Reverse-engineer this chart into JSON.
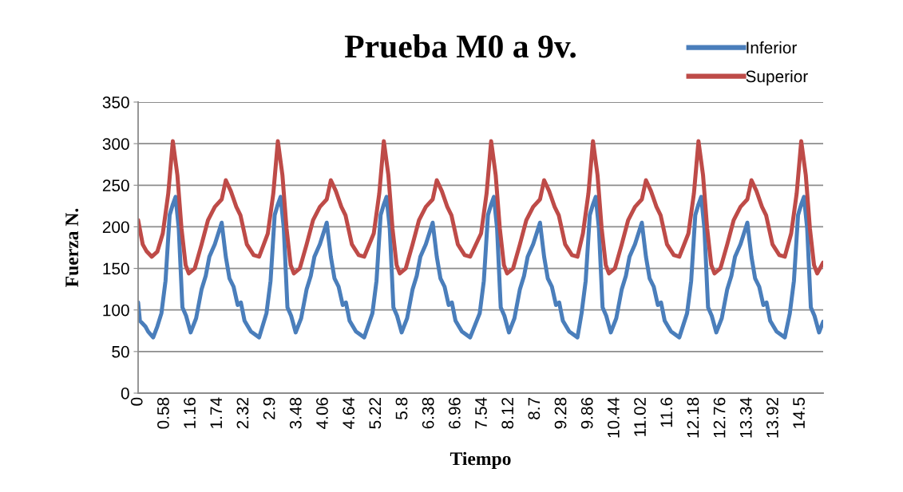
{
  "chart_data": {
    "type": "line",
    "title": "Prueba M0 a 9v.",
    "xlabel": "Tiempo",
    "ylabel": "Fuerza N.",
    "ylim": [
      0,
      350
    ],
    "yticks": [
      0,
      50,
      100,
      150,
      200,
      250,
      300,
      350
    ],
    "xlim": [
      0,
      15.0
    ],
    "xticks": [
      0,
      0.58,
      1.16,
      1.74,
      2.32,
      2.9,
      3.48,
      4.06,
      4.64,
      5.22,
      5.8,
      6.38,
      6.96,
      7.54,
      8.12,
      8.7,
      9.28,
      9.86,
      10.44,
      11.02,
      11.6,
      12.18,
      12.76,
      13.34,
      13.92,
      14.5
    ],
    "grid": "y",
    "legend": "top right",
    "marker": "none",
    "line_style": "solid",
    "series": [
      {
        "name": "Inferior",
        "color": "#4a7ebb",
        "x": [
          0,
          0.04,
          0.16,
          0.22,
          0.33,
          0.42,
          0.51,
          0.6,
          0.69,
          0.76,
          0.82,
          0.89,
          0.97,
          1.05,
          1.15,
          1.27,
          1.39,
          1.48,
          1.56,
          1.68,
          1.83,
          1.92,
          2.0,
          2.09,
          2.18,
          2.25,
          2.33,
          2.47,
          2.65,
          2.81,
          2.9,
          2.99,
          3.06,
          3.12,
          3.19,
          3.27,
          3.35,
          3.45,
          3.57,
          3.69,
          3.78,
          3.86,
          3.98,
          4.13,
          4.22,
          4.3,
          4.39,
          4.48,
          4.55,
          4.63,
          4.77,
          4.95,
          5.13,
          5.22,
          5.31,
          5.38,
          5.44,
          5.51,
          5.59,
          5.67,
          5.77,
          5.89,
          6.01,
          6.1,
          6.18,
          6.3,
          6.45,
          6.54,
          6.62,
          6.71,
          6.8,
          6.87,
          6.95,
          7.09,
          7.27,
          7.48,
          7.57,
          7.66,
          7.73,
          7.79,
          7.86,
          7.94,
          8.02,
          8.12,
          8.24,
          8.36,
          8.45,
          8.53,
          8.65,
          8.8,
          8.89,
          8.97,
          9.06,
          9.15,
          9.22,
          9.3,
          9.44,
          9.62,
          9.71,
          9.8,
          9.89,
          9.96,
          10.02,
          10.09,
          10.17,
          10.25,
          10.35,
          10.47,
          10.59,
          10.68,
          10.76,
          10.88,
          11.03,
          11.12,
          11.2,
          11.29,
          11.38,
          11.45,
          11.53,
          11.67,
          11.85,
          12.02,
          12.11,
          12.2,
          12.27,
          12.33,
          12.4,
          12.48,
          12.56,
          12.66,
          12.78,
          12.9,
          12.99,
          13.07,
          13.19,
          13.34,
          13.43,
          13.51,
          13.6,
          13.69,
          13.76,
          13.84,
          13.98,
          14.16,
          14.27,
          14.36,
          14.45,
          14.52,
          14.58,
          14.65,
          14.73,
          14.81,
          14.91,
          15.0
        ],
        "values": [
          109,
          87,
          80,
          74,
          67,
          80,
          96,
          135,
          214,
          227,
          236,
          198,
          103,
          93,
          73,
          90,
          125,
          141,
          164,
          179,
          205,
          164,
          138,
          128,
          106,
          109,
          87,
          74,
          67,
          96,
          135,
          214,
          227,
          236,
          198,
          103,
          93,
          73,
          90,
          125,
          141,
          164,
          179,
          205,
          164,
          138,
          128,
          106,
          109,
          87,
          74,
          67,
          96,
          135,
          214,
          227,
          236,
          198,
          103,
          93,
          73,
          90,
          125,
          141,
          164,
          179,
          205,
          164,
          138,
          128,
          106,
          109,
          87,
          74,
          67,
          96,
          135,
          214,
          227,
          236,
          198,
          103,
          93,
          73,
          90,
          125,
          141,
          164,
          179,
          205,
          164,
          138,
          128,
          106,
          109,
          87,
          74,
          67,
          96,
          135,
          214,
          227,
          236,
          198,
          103,
          93,
          73,
          90,
          125,
          141,
          164,
          179,
          205,
          164,
          138,
          128,
          106,
          109,
          87,
          74,
          67,
          96,
          135,
          214,
          227,
          236,
          198,
          103,
          93,
          73,
          90,
          125,
          141,
          164,
          179,
          205,
          164,
          138,
          128,
          106,
          109,
          87,
          74,
          67,
          96,
          135,
          214,
          227,
          236,
          198,
          103,
          93,
          73,
          86
        ]
      },
      {
        "name": "Superior",
        "color": "#be4b48",
        "x": [
          0,
          0.1,
          0.18,
          0.3,
          0.42,
          0.54,
          0.66,
          0.76,
          0.86,
          0.95,
          1.04,
          1.11,
          1.24,
          1.39,
          1.53,
          1.68,
          1.83,
          1.92,
          2.03,
          2.15,
          2.24,
          2.38,
          2.53,
          2.65,
          2.84,
          2.96,
          3.06,
          3.16,
          3.25,
          3.34,
          3.41,
          3.54,
          3.69,
          3.83,
          3.98,
          4.13,
          4.22,
          4.33,
          4.45,
          4.54,
          4.68,
          4.83,
          4.95,
          5.16,
          5.28,
          5.38,
          5.48,
          5.57,
          5.66,
          5.73,
          5.86,
          6.01,
          6.15,
          6.3,
          6.45,
          6.54,
          6.65,
          6.77,
          6.86,
          7.0,
          7.15,
          7.27,
          7.51,
          7.63,
          7.73,
          7.83,
          7.92,
          8.01,
          8.08,
          8.21,
          8.36,
          8.5,
          8.65,
          8.8,
          8.89,
          9.0,
          9.12,
          9.21,
          9.35,
          9.5,
          9.62,
          9.74,
          9.86,
          9.96,
          10.06,
          10.15,
          10.24,
          10.31,
          10.44,
          10.59,
          10.73,
          10.88,
          11.03,
          11.12,
          11.23,
          11.35,
          11.44,
          11.58,
          11.73,
          11.85,
          12.05,
          12.17,
          12.27,
          12.37,
          12.46,
          12.55,
          12.62,
          12.75,
          12.9,
          13.04,
          13.19,
          13.34,
          13.43,
          13.54,
          13.66,
          13.75,
          13.89,
          14.04,
          14.16,
          14.3,
          14.42,
          14.52,
          14.62,
          14.71,
          14.8,
          14.87,
          15.0
        ],
        "values": [
          208,
          179,
          171,
          164,
          170,
          192,
          240,
          303,
          262,
          198,
          154,
          144,
          150,
          179,
          208,
          224,
          233,
          256,
          243,
          224,
          214,
          179,
          166,
          164,
          192,
          240,
          303,
          262,
          198,
          154,
          144,
          150,
          179,
          208,
          224,
          233,
          256,
          243,
          224,
          214,
          179,
          166,
          164,
          192,
          240,
          303,
          262,
          198,
          154,
          144,
          150,
          179,
          208,
          224,
          233,
          256,
          243,
          224,
          214,
          179,
          166,
          164,
          192,
          240,
          303,
          262,
          198,
          154,
          144,
          150,
          179,
          208,
          224,
          233,
          256,
          243,
          224,
          214,
          179,
          166,
          164,
          192,
          240,
          303,
          262,
          198,
          154,
          144,
          150,
          179,
          208,
          224,
          233,
          256,
          243,
          224,
          214,
          179,
          166,
          164,
          192,
          240,
          303,
          262,
          198,
          154,
          144,
          150,
          179,
          208,
          224,
          233,
          256,
          243,
          224,
          214,
          179,
          166,
          164,
          192,
          240,
          303,
          262,
          198,
          154,
          144,
          157
        ]
      }
    ]
  }
}
